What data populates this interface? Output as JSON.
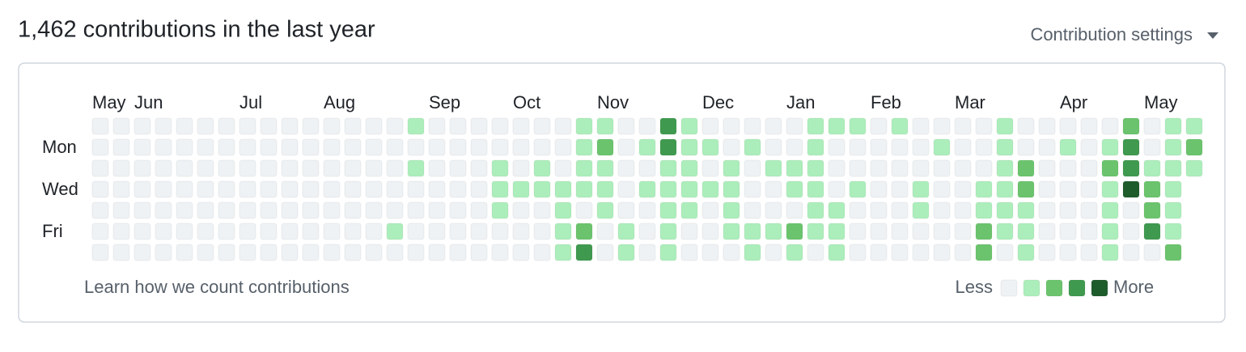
{
  "header": {
    "title": "1,462 contributions in the last year",
    "settings": "Contribution settings"
  },
  "graph": {
    "months": [
      "May",
      null,
      "Jun",
      null,
      null,
      null,
      null,
      "Jul",
      null,
      null,
      null,
      "Aug",
      null,
      null,
      null,
      null,
      "Sep",
      null,
      null,
      null,
      "Oct",
      null,
      null,
      null,
      "Nov",
      null,
      null,
      null,
      null,
      "Dec",
      null,
      null,
      null,
      "Jan",
      null,
      null,
      null,
      "Feb",
      null,
      null,
      null,
      "Mar",
      null,
      null,
      null,
      null,
      "Apr",
      null,
      null,
      null,
      "May",
      null,
      null
    ],
    "days": [
      null,
      "Mon",
      null,
      "Wed",
      null,
      "Fri",
      null
    ],
    "colors": [
      "#eff2f5",
      "#aceebb",
      "#6bc46d",
      "#3f9a4f",
      "#1f5c2c"
    ],
    "levels": [
      [
        0,
        0,
        0,
        0,
        0,
        0,
        0,
        0,
        0,
        0,
        0,
        0,
        0,
        0,
        0,
        1,
        0,
        0,
        0,
        0,
        0,
        0,
        0,
        1,
        1,
        0,
        0,
        3,
        1,
        0,
        0,
        0,
        0,
        0,
        1,
        1,
        1,
        0,
        1,
        0,
        0,
        0,
        0,
        1,
        0,
        0,
        0,
        0,
        0,
        2,
        0,
        1,
        1
      ],
      [
        0,
        0,
        0,
        0,
        0,
        0,
        0,
        0,
        0,
        0,
        0,
        0,
        0,
        0,
        0,
        0,
        0,
        0,
        0,
        0,
        0,
        0,
        0,
        1,
        2,
        0,
        1,
        3,
        1,
        1,
        0,
        1,
        0,
        0,
        1,
        0,
        0,
        0,
        0,
        0,
        1,
        0,
        0,
        1,
        0,
        0,
        1,
        0,
        1,
        3,
        0,
        1,
        2
      ],
      [
        0,
        0,
        0,
        0,
        0,
        0,
        0,
        0,
        0,
        0,
        0,
        0,
        0,
        0,
        0,
        1,
        0,
        0,
        0,
        1,
        0,
        1,
        0,
        1,
        1,
        0,
        0,
        1,
        1,
        0,
        1,
        0,
        1,
        1,
        1,
        0,
        0,
        0,
        0,
        0,
        0,
        0,
        0,
        1,
        2,
        0,
        0,
        0,
        2,
        3,
        1,
        1,
        1
      ],
      [
        0,
        0,
        0,
        0,
        0,
        0,
        0,
        0,
        0,
        0,
        0,
        0,
        0,
        0,
        0,
        0,
        0,
        0,
        0,
        1,
        1,
        1,
        1,
        1,
        1,
        0,
        1,
        1,
        1,
        1,
        1,
        0,
        0,
        1,
        1,
        0,
        1,
        0,
        0,
        1,
        0,
        0,
        1,
        1,
        2,
        0,
        0,
        0,
        1,
        4,
        2,
        1,
        null
      ],
      [
        0,
        0,
        0,
        0,
        0,
        0,
        0,
        0,
        0,
        0,
        0,
        0,
        0,
        0,
        0,
        0,
        0,
        0,
        0,
        1,
        0,
        0,
        1,
        0,
        1,
        0,
        0,
        1,
        1,
        0,
        1,
        0,
        0,
        0,
        1,
        1,
        0,
        0,
        0,
        1,
        0,
        0,
        1,
        1,
        1,
        0,
        0,
        0,
        1,
        0,
        2,
        1,
        null
      ],
      [
        0,
        0,
        0,
        0,
        0,
        0,
        0,
        0,
        0,
        0,
        0,
        0,
        0,
        0,
        1,
        0,
        0,
        0,
        0,
        0,
        0,
        0,
        1,
        2,
        0,
        1,
        0,
        1,
        0,
        0,
        1,
        1,
        1,
        2,
        1,
        1,
        0,
        0,
        0,
        0,
        0,
        0,
        2,
        1,
        1,
        0,
        0,
        0,
        1,
        0,
        3,
        1,
        null
      ],
      [
        0,
        0,
        0,
        0,
        0,
        0,
        0,
        0,
        0,
        0,
        0,
        0,
        0,
        0,
        0,
        0,
        0,
        0,
        0,
        0,
        0,
        0,
        1,
        3,
        0,
        1,
        0,
        1,
        0,
        0,
        0,
        1,
        0,
        1,
        0,
        1,
        0,
        0,
        0,
        0,
        0,
        0,
        2,
        0,
        1,
        0,
        0,
        0,
        1,
        0,
        0,
        2,
        null
      ]
    ]
  },
  "footer": {
    "link": "Learn how we count contributions",
    "less": "Less",
    "more": "More"
  }
}
